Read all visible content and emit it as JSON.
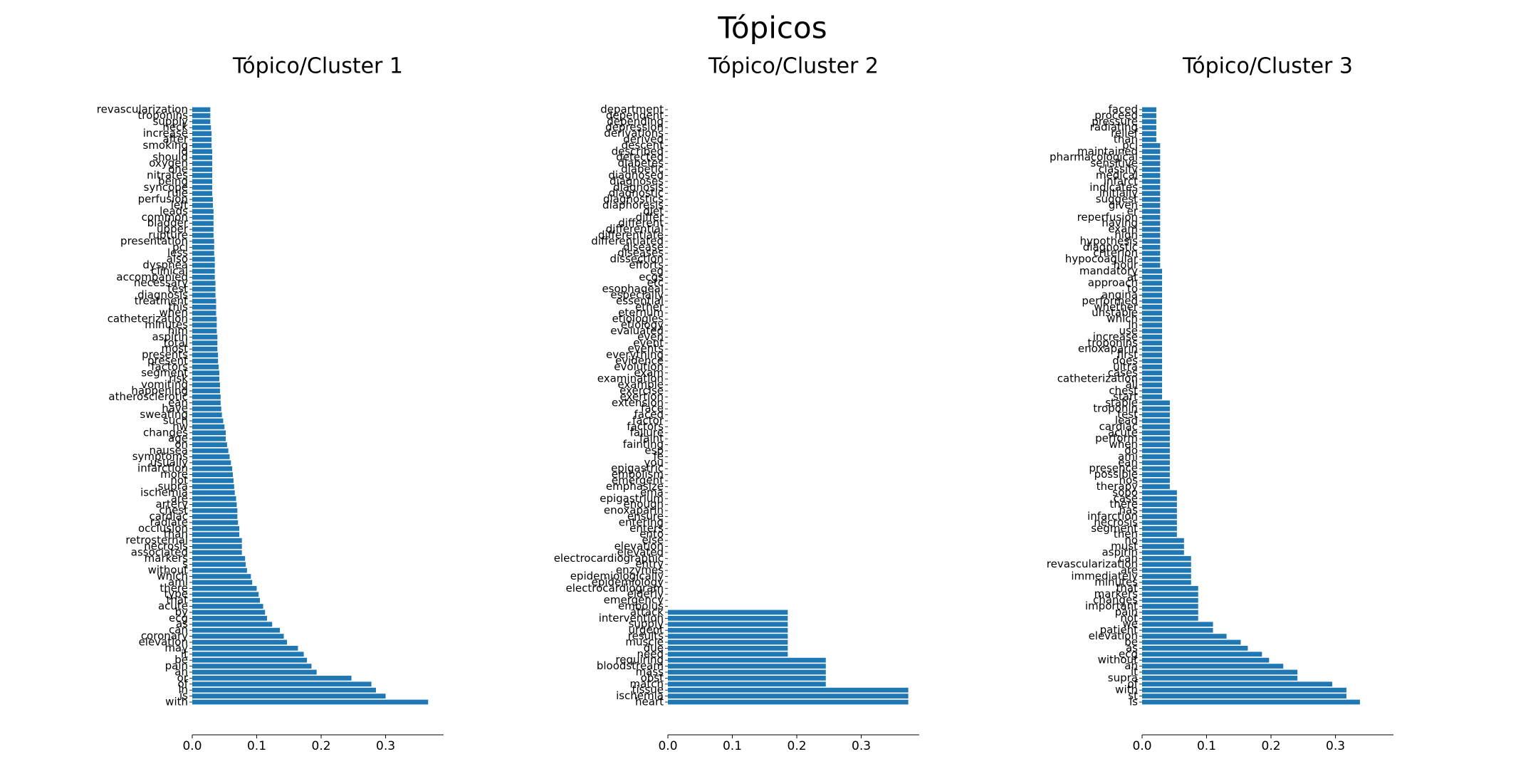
{
  "title": "Tópicos",
  "chart_data": [
    {
      "type": "barh",
      "title": "Tópico/Cluster 1",
      "color": "#1f77b4",
      "categories": [
        "revascularization",
        "troponins",
        "supply",
        "neck",
        "increase",
        "after",
        "smoking",
        "id",
        "should",
        "oxygen",
        "one",
        "nitrates",
        "being",
        "syncope",
        "rule",
        "perfusion",
        "left",
        "leads",
        "common",
        "bladder",
        "upper",
        "rupture",
        "presentation",
        "pci",
        "less",
        "also",
        "dyspnea",
        "clinical",
        "accompanied",
        "necessary",
        "test",
        "diagnosis",
        "treatment",
        "this",
        "when",
        "catheterization",
        "minutes",
        "him",
        "aspirin",
        "total",
        "most",
        "presents",
        "present",
        "factors",
        "segment",
        "risk",
        "vomiting",
        "happening",
        "atherosclerotic",
        "ean",
        "have",
        "sweating",
        "such",
        "nw",
        "changes",
        "age",
        "on",
        "nausea",
        "symptoms",
        "usually",
        "infarction",
        "more",
        "not",
        "supra",
        "ischemia",
        "are",
        "artery",
        "chest",
        "cardiac",
        "radiate",
        "occlusion",
        "than",
        "retrosternal",
        "necrosis",
        "associated",
        "markers",
        "s",
        "without",
        "which",
        "ami",
        "there",
        "type",
        "that",
        "acute",
        "by",
        "ecg",
        "as",
        "can",
        "coronary",
        "elevation",
        "may",
        "it",
        "be",
        "pain",
        "an",
        "or",
        "of",
        "in",
        "is",
        "with"
      ],
      "values": [
        0.028,
        0.028,
        0.028,
        0.029,
        0.03,
        0.03,
        0.03,
        0.031,
        0.031,
        0.031,
        0.031,
        0.031,
        0.031,
        0.031,
        0.031,
        0.032,
        0.032,
        0.033,
        0.033,
        0.033,
        0.033,
        0.033,
        0.034,
        0.034,
        0.034,
        0.035,
        0.035,
        0.035,
        0.035,
        0.036,
        0.036,
        0.036,
        0.037,
        0.037,
        0.037,
        0.038,
        0.038,
        0.038,
        0.039,
        0.039,
        0.039,
        0.04,
        0.04,
        0.041,
        0.042,
        0.042,
        0.043,
        0.043,
        0.044,
        0.044,
        0.045,
        0.046,
        0.048,
        0.05,
        0.052,
        0.052,
        0.054,
        0.056,
        0.058,
        0.06,
        0.062,
        0.063,
        0.064,
        0.065,
        0.066,
        0.068,
        0.069,
        0.07,
        0.07,
        0.071,
        0.073,
        0.073,
        0.077,
        0.077,
        0.077,
        0.082,
        0.083,
        0.085,
        0.091,
        0.093,
        0.1,
        0.103,
        0.105,
        0.11,
        0.113,
        0.116,
        0.124,
        0.136,
        0.142,
        0.147,
        0.164,
        0.173,
        0.178,
        0.185,
        0.193,
        0.247,
        0.278,
        0.285,
        0.3,
        0.366
      ],
      "xlim": [
        0,
        0.39
      ],
      "xticks": [
        {
          "value": 0,
          "label": "0.0"
        },
        0.1,
        0.2,
        0.3
      ]
    },
    {
      "type": "barh",
      "title": "Tópico/Cluster 2",
      "color": "#1f77b4",
      "categories": [
        "department",
        "dependent",
        "depending",
        "depression",
        "derivations",
        "derived",
        "descent",
        "described",
        "detected",
        "diabetes",
        "diabetic",
        "diagnosed",
        "diagnoses",
        "diagnosis",
        "diagnostic",
        "diagnostics",
        "diaphoresis",
        "diet",
        "differ",
        "different",
        "differential",
        "differentiate",
        "differentiated",
        "disease",
        "diseases",
        "dissection",
        "efforts",
        "eg",
        "ecgs",
        "etc",
        "esophageal",
        "especially",
        "essential",
        "ether",
        "eternum",
        "etiologies",
        "etiology",
        "evaluated",
        "even",
        "event",
        "events",
        "everything",
        "evidence",
        "evolution",
        "exam",
        "examination",
        "example",
        "exercise",
        "exertion",
        "extension",
        "face",
        "faced",
        "factor",
        "factors",
        "failure",
        "faint",
        "fainting",
        "esp",
        "fe",
        "you",
        "epigastric",
        "embolism",
        "emergent",
        "emphasize",
        "ema",
        "epigastrium",
        "enough",
        "enoxaparin",
        "ensure",
        "entering",
        "enters",
        "ento",
        "else",
        "elevation",
        "elevated",
        "electrocardiographic",
        "entry",
        "enzymes",
        "epidemiologically",
        "epidemiology",
        "electrocardiogram",
        "elderly",
        "emergency",
        "embolus",
        "attack",
        "intervention",
        "supply",
        "urgent",
        "results",
        "muscle",
        "due",
        "need",
        "requiring",
        "bloodstream",
        "mass",
        "obst",
        "match",
        "tissue",
        "ischemia",
        "heart"
      ],
      "values": [
        0,
        0,
        0,
        0,
        0,
        0,
        0,
        0,
        0,
        0,
        0,
        0,
        0,
        0,
        0,
        0,
        0,
        0,
        0,
        0,
        0,
        0,
        0,
        0,
        0,
        0,
        0,
        0,
        0,
        0,
        0,
        0,
        0,
        0,
        0,
        0,
        0,
        0,
        0,
        0,
        0,
        0,
        0,
        0,
        0,
        0,
        0,
        0,
        0,
        0,
        0,
        0,
        0,
        0,
        0,
        0,
        0,
        0,
        0,
        0,
        0,
        0,
        0,
        0,
        0,
        0,
        0,
        0,
        0,
        0,
        0,
        0,
        0,
        0,
        0,
        0,
        0,
        0,
        0,
        0,
        0,
        0,
        0,
        0,
        0.186,
        0.186,
        0.186,
        0.186,
        0.186,
        0.186,
        0.186,
        0.186,
        0.245,
        0.245,
        0.245,
        0.245,
        0.245,
        0.373,
        0.373,
        0.373
      ],
      "xlim": [
        0,
        0.39
      ],
      "xticks": [
        {
          "value": 0,
          "label": "0.0"
        },
        0.1,
        0.2,
        0.3
      ]
    },
    {
      "type": "barh",
      "title": "Tópico/Cluster 3",
      "color": "#1f77b4",
      "categories": [
        "faced",
        "proceed",
        "pressure",
        "radiating",
        "relief",
        "than",
        "pci",
        "maintained",
        "pharmacological",
        "sensitive",
        "classify",
        "medical",
        "infarct",
        "indicates",
        "initially",
        "suggest",
        "given",
        "er",
        "reperfusion",
        "having",
        "exam",
        "high",
        "hypothesis",
        "diagnostic",
        "criterion",
        "hypocoagular",
        "hour",
        "mandatory",
        "at",
        "approach",
        "to",
        "angina",
        "performed",
        "whether",
        "unstable",
        "which",
        "in",
        "use",
        "increase",
        "troponins",
        "enoxaparin",
        "first",
        "does",
        "ultra",
        "cases",
        "catheterization",
        "all",
        "chest",
        "start",
        "stable",
        "troponin",
        "test",
        "lead",
        "cardiac",
        "acute",
        "perform",
        "when",
        "do",
        "ami",
        "ean",
        "presence",
        "possible",
        "nos",
        "therapy",
        "sopo",
        "case",
        "there",
        "has",
        "infarction",
        "necrosis",
        "segment",
        "then",
        "no",
        "must",
        "aspirin",
        "can",
        "revascularization",
        "are",
        "immediately",
        "minutes",
        "that",
        "markers",
        "changes",
        "important",
        "pain",
        "not",
        "we",
        "patient",
        "elevation",
        "be",
        "as",
        "ecg",
        "without",
        "an",
        "it",
        "supra",
        "of",
        "with",
        "st",
        "is"
      ],
      "values": [
        0.022,
        0.022,
        0.022,
        0.022,
        0.022,
        0.022,
        0.028,
        0.028,
        0.028,
        0.028,
        0.028,
        0.028,
        0.028,
        0.028,
        0.028,
        0.028,
        0.028,
        0.028,
        0.028,
        0.028,
        0.028,
        0.028,
        0.028,
        0.028,
        0.028,
        0.028,
        0.028,
        0.031,
        0.031,
        0.031,
        0.031,
        0.031,
        0.031,
        0.031,
        0.031,
        0.031,
        0.031,
        0.031,
        0.031,
        0.031,
        0.031,
        0.031,
        0.031,
        0.031,
        0.031,
        0.031,
        0.031,
        0.031,
        0.031,
        0.043,
        0.043,
        0.043,
        0.043,
        0.043,
        0.043,
        0.043,
        0.043,
        0.043,
        0.043,
        0.043,
        0.043,
        0.043,
        0.043,
        0.043,
        0.054,
        0.054,
        0.054,
        0.054,
        0.054,
        0.054,
        0.054,
        0.054,
        0.065,
        0.065,
        0.065,
        0.076,
        0.076,
        0.076,
        0.076,
        0.076,
        0.087,
        0.087,
        0.087,
        0.087,
        0.087,
        0.087,
        0.11,
        0.11,
        0.131,
        0.153,
        0.164,
        0.186,
        0.197,
        0.219,
        0.241,
        0.241,
        0.295,
        0.317,
        0.317,
        0.338
      ],
      "xlim": [
        0,
        0.39
      ],
      "xticks": [
        {
          "value": 0,
          "label": "0.0"
        },
        0.1,
        0.2,
        0.3
      ]
    }
  ]
}
